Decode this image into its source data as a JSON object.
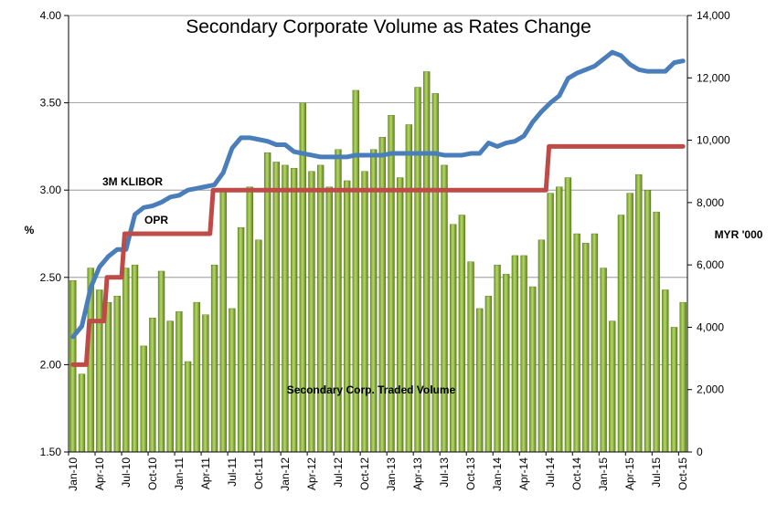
{
  "chart_data": {
    "type": "bar+line",
    "title": "Secondary Corporate Volume as Rates Change",
    "ylabel_left": "%",
    "ylabel_right": "MYR '000",
    "ylim_left": [
      1.5,
      4.0
    ],
    "ylim_right": [
      0,
      14000
    ],
    "yticks_left": [
      "1.50",
      "2.00",
      "2.50",
      "3.00",
      "3.50",
      "4.00"
    ],
    "yticks_right": [
      "0",
      "2,000",
      "4,000",
      "6,000",
      "8,000",
      "10,000",
      "12,000",
      "14,000"
    ],
    "x_tick_labels": [
      "Jan-10",
      "Apr-10",
      "Jul-10",
      "Oct-10",
      "Jan-11",
      "Apr-11",
      "Jul-11",
      "Oct-11",
      "Jan-12",
      "Apr-12",
      "Jul-12",
      "Oct-12",
      "Jan-13",
      "Apr-13",
      "Jul-13",
      "Oct-13",
      "Jan-14",
      "Apr-14",
      "Jul-14",
      "Oct-14",
      "Jan-15",
      "Apr-15",
      "Jul-15",
      "Oct-15"
    ],
    "months": 70,
    "grid": "horizontal",
    "colors": {
      "bars": "#8db83c",
      "bar_edge": "#4f6b1c",
      "klibor": "#4a7ebb",
      "opr": "#be4b48",
      "grid": "#888888"
    },
    "series": [
      {
        "name": "Secondary Corp. Traded Volume",
        "type": "bar",
        "axis": "right",
        "values": [
          5500,
          2500,
          5900,
          5200,
          4800,
          5000,
          5900,
          6000,
          3400,
          4300,
          5800,
          4200,
          4500,
          2900,
          4800,
          4400,
          6000,
          8400,
          4600,
          7200,
          8500,
          6800,
          9600,
          9300,
          9200,
          9100,
          11200,
          9000,
          9200,
          8500,
          9700,
          8700,
          11600,
          9000,
          9700,
          10100,
          10800,
          8800,
          10500,
          11700,
          12200,
          11500,
          9200,
          7300,
          7600,
          6100,
          4600,
          5000,
          6000,
          5700,
          6300,
          6300,
          5300,
          6800,
          8300,
          8500,
          8800,
          7000,
          6700,
          7000,
          5900,
          4200,
          7600,
          8300,
          8900,
          8400,
          7700,
          5200,
          4000,
          4800
        ]
      },
      {
        "name": "3M KLIBOR",
        "type": "line",
        "axis": "left",
        "values": [
          2.16,
          2.22,
          2.44,
          2.56,
          2.62,
          2.66,
          2.66,
          2.86,
          2.9,
          2.91,
          2.93,
          2.96,
          2.97,
          3.0,
          3.01,
          3.02,
          3.03,
          3.1,
          3.24,
          3.3,
          3.3,
          3.29,
          3.28,
          3.26,
          3.26,
          3.22,
          3.21,
          3.2,
          3.19,
          3.19,
          3.19,
          3.19,
          3.2,
          3.2,
          3.2,
          3.2,
          3.21,
          3.21,
          3.21,
          3.21,
          3.21,
          3.21,
          3.2,
          3.2,
          3.2,
          3.21,
          3.21,
          3.27,
          3.25,
          3.27,
          3.28,
          3.31,
          3.39,
          3.45,
          3.5,
          3.54,
          3.64,
          3.67,
          3.69,
          3.71,
          3.75,
          3.79,
          3.77,
          3.72,
          3.69,
          3.68,
          3.68,
          3.68,
          3.73,
          3.74
        ]
      },
      {
        "name": "OPR",
        "type": "line",
        "axis": "left",
        "values": [
          2.0,
          2.0,
          2.25,
          2.25,
          2.5,
          2.5,
          2.75,
          2.75,
          2.75,
          2.75,
          2.75,
          2.75,
          2.75,
          2.75,
          2.75,
          2.75,
          3.0,
          3.0,
          3.0,
          3.0,
          3.0,
          3.0,
          3.0,
          3.0,
          3.0,
          3.0,
          3.0,
          3.0,
          3.0,
          3.0,
          3.0,
          3.0,
          3.0,
          3.0,
          3.0,
          3.0,
          3.0,
          3.0,
          3.0,
          3.0,
          3.0,
          3.0,
          3.0,
          3.0,
          3.0,
          3.0,
          3.0,
          3.0,
          3.0,
          3.0,
          3.0,
          3.0,
          3.0,
          3.0,
          3.25,
          3.25,
          3.25,
          3.25,
          3.25,
          3.25,
          3.25,
          3.25,
          3.25,
          3.25,
          3.25,
          3.25,
          3.25,
          3.25,
          3.25,
          3.25
        ]
      }
    ]
  }
}
